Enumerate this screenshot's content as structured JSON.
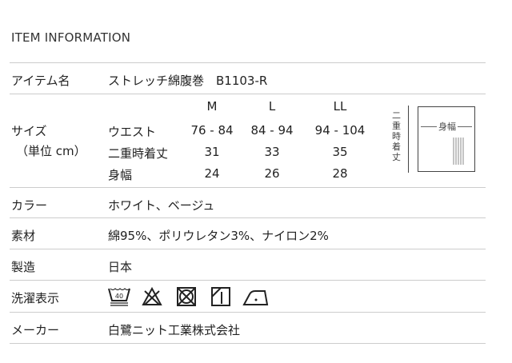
{
  "title": "ITEM INFORMATION",
  "rows": {
    "item": {
      "label": "アイテム名",
      "value": "ストレッチ綿腹巻　B1103-R"
    },
    "size": {
      "label": "サイズ",
      "unit": "（単位 cm）",
      "headers": [
        "M",
        "L",
        "LL"
      ],
      "table": [
        {
          "name": "ウエスト",
          "values": [
            "76 - 84",
            "84 - 94",
            "94 - 104"
          ]
        },
        {
          "name": "二重時着丈",
          "values": [
            "31",
            "33",
            "35"
          ]
        },
        {
          "name": "身幅",
          "values": [
            "24",
            "26",
            "28"
          ]
        }
      ],
      "diagram": {
        "length": "二重時着丈",
        "width": "身幅"
      }
    },
    "color": {
      "label": "カラー",
      "value": "ホワイト、ベージュ"
    },
    "material": {
      "label": "素材",
      "value": "綿95%、ポリウレタン3%、ナイロン2%"
    },
    "origin": {
      "label": "製造",
      "value": "日本"
    },
    "care": {
      "label": "洗濯表示",
      "icons": [
        "wash-40-icon",
        "no-bleach-icon",
        "no-tumble-dry-icon",
        "shade-drip-dry-icon",
        "iron-low-icon"
      ],
      "wash_temp": "40"
    },
    "maker": {
      "label": "メーカー",
      "value": "白鷺ニット工業株式会社"
    }
  }
}
